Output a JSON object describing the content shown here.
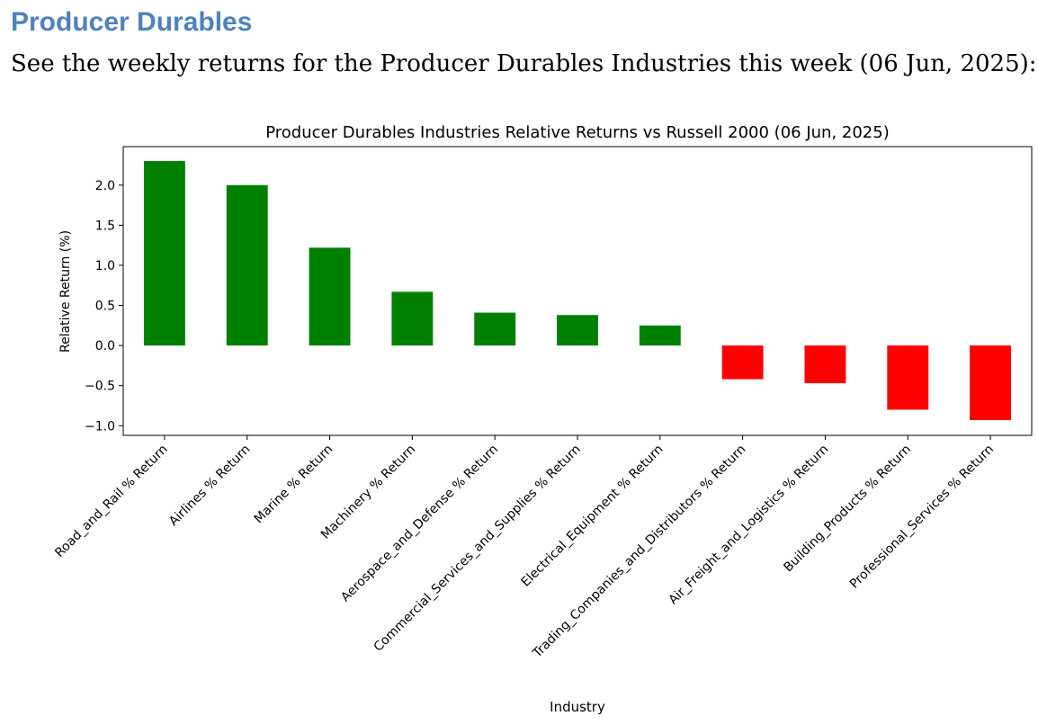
{
  "page": {
    "heading": "Producer Durables",
    "intro": "See the weekly returns for the Producer Durables Industries this week (06 Jun, 2025):"
  },
  "colors": {
    "positive": "#008000",
    "negative": "#ff0000",
    "heading": "#4f81bd"
  },
  "chart_data": {
    "type": "bar",
    "title": "Producer Durables Industries Relative Returns vs Russell 2000 (06 Jun, 2025)",
    "xlabel": "Industry",
    "ylabel": "Relative Return (%)",
    "ylim": [
      -1.12,
      2.48
    ],
    "yticks": [
      2.0,
      1.5,
      1.0,
      0.5,
      0.0,
      -0.5,
      -1.0
    ],
    "ytick_labels": [
      "2.0",
      "1.5",
      "1.0",
      "0.5",
      "0.0",
      "−0.5",
      "−1.0"
    ],
    "categories": [
      "Road_and_Rail % Return",
      "Airlines % Return",
      "Marine % Return",
      "Machinery % Return",
      "Aerospace_and_Defense % Return",
      "Commercial_Services_and_Supplies % Return",
      "Electrical_Equipment % Return",
      "Trading_Companies_and_Distributors % Return",
      "Air_Freight_and_Logistics % Return",
      "Building_Products % Return",
      "Professional_Services % Return"
    ],
    "values": [
      2.3,
      2.0,
      1.22,
      0.67,
      0.41,
      0.38,
      0.25,
      -0.42,
      -0.47,
      -0.8,
      -0.93
    ]
  }
}
